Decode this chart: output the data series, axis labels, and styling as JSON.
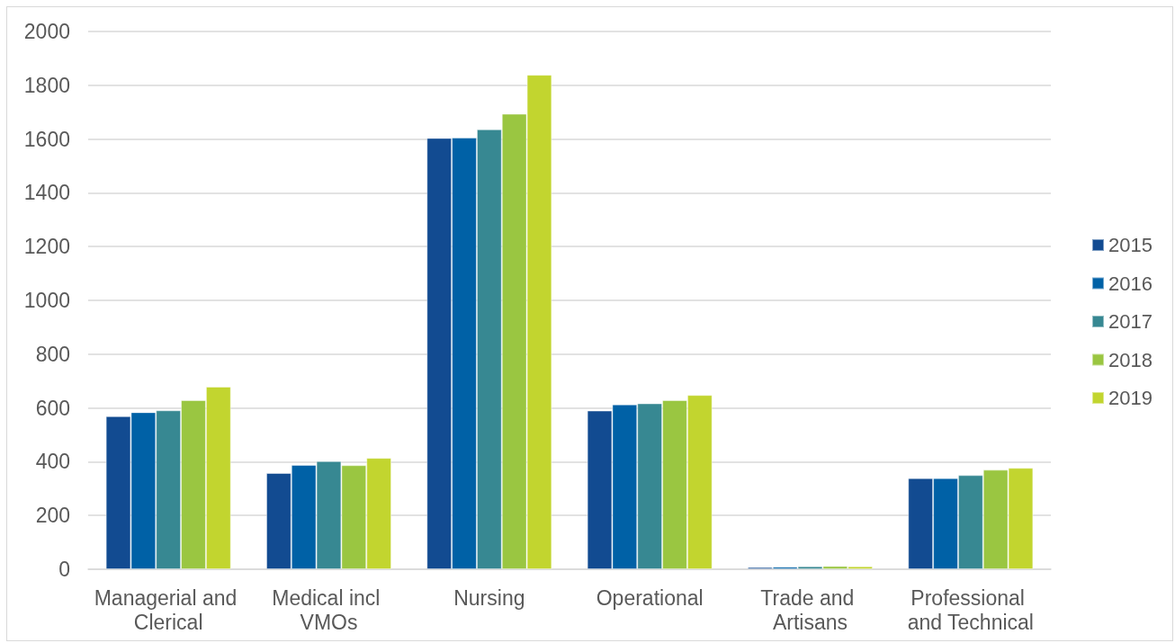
{
  "chart_data": {
    "type": "bar",
    "categories": [
      "Managerial and Clerical",
      "Medical incl VMOs",
      "Nursing",
      "Operational",
      "Trade and Artisans",
      "Professional and Technical"
    ],
    "series": [
      {
        "name": "2015",
        "color": "#124b91",
        "values": [
          569,
          358,
          1604,
          590,
          8,
          339
        ]
      },
      {
        "name": "2016",
        "color": "#0061a6",
        "values": [
          584,
          388,
          1605,
          613,
          9,
          339
        ]
      },
      {
        "name": "2017",
        "color": "#378892",
        "values": [
          591,
          402,
          1636,
          617,
          11,
          350
        ]
      },
      {
        "name": "2018",
        "color": "#9ac641",
        "values": [
          629,
          387,
          1694,
          629,
          12,
          370
        ]
      },
      {
        "name": "2019",
        "color": "#c2d52f",
        "values": [
          679,
          414,
          1839,
          648,
          11,
          377
        ]
      }
    ],
    "ylim": [
      0,
      2000
    ],
    "yticks": [
      0,
      200,
      400,
      600,
      800,
      1000,
      1200,
      1400,
      1600,
      1800,
      2000
    ],
    "grid": "y",
    "legend": "right"
  }
}
